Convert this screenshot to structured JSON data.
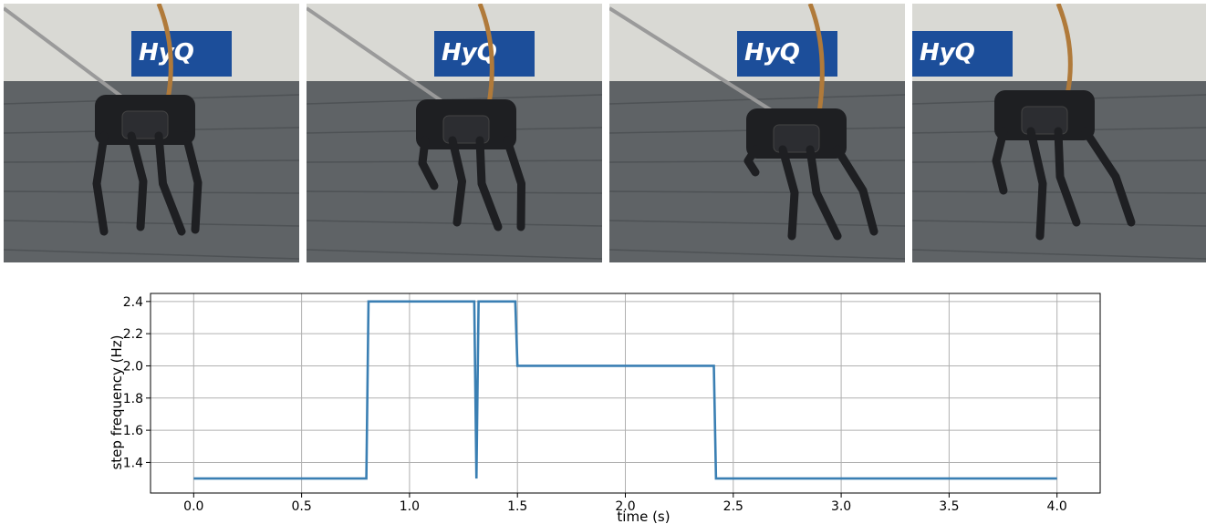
{
  "photos": [
    {
      "banner_text": "HyQ",
      "scene": "robot-frame-1"
    },
    {
      "banner_text": "HyQ",
      "scene": "robot-frame-2"
    },
    {
      "banner_text": "HyQ",
      "scene": "robot-frame-3"
    },
    {
      "banner_text": "HyQ",
      "scene": "robot-frame-4"
    }
  ],
  "colors": {
    "line": "#3a7fb3",
    "grid": "#b0b0b0",
    "floor": "#5f6366",
    "wall": "#d9d9d4",
    "robot": "#1e1f22",
    "tether": "#b07a3a",
    "banner": "#1c4e9a"
  },
  "chart_data": {
    "type": "line",
    "xlabel": "time (s)",
    "ylabel": "step frequency (Hz)",
    "xlim": [
      -0.2,
      4.2
    ],
    "ylim": [
      1.21,
      2.45
    ],
    "xticks": [
      0.0,
      0.5,
      1.0,
      1.5,
      2.0,
      2.5,
      3.0,
      3.5,
      4.0
    ],
    "xtick_labels": [
      "0.0",
      "0.5",
      "1.0",
      "1.5",
      "2.0",
      "2.5",
      "3.0",
      "3.5",
      "4.0"
    ],
    "yticks": [
      1.4,
      1.6,
      1.8,
      2.0,
      2.2,
      2.4
    ],
    "ytick_labels": [
      "1.4",
      "1.6",
      "1.8",
      "2.0",
      "2.2",
      "2.4"
    ],
    "grid": true,
    "series": [
      {
        "x": [
          0.0,
          0.8,
          0.81,
          1.3,
          1.31,
          1.32,
          1.49,
          1.5,
          2.41,
          2.42,
          4.0
        ],
        "y": [
          1.3,
          1.3,
          2.4,
          2.4,
          1.3,
          2.4,
          2.4,
          2.0,
          2.0,
          1.3,
          1.3
        ]
      }
    ]
  }
}
